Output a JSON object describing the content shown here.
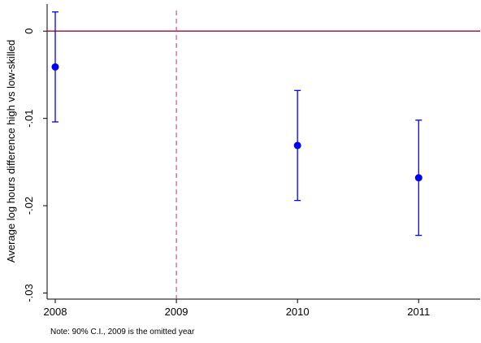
{
  "chart_data": {
    "type": "errorbar",
    "ylabel": "Average log hours difference high vs low-skilled",
    "note": "Note: 90% C.I., 2009 is the omitted year",
    "x": [
      2008,
      2010,
      2011
    ],
    "values": [
      -0.0041,
      -0.0131,
      -0.0168
    ],
    "lower": [
      -0.0104,
      -0.0194,
      -0.0234
    ],
    "upper": [
      0.0022,
      -0.0068,
      -0.0102
    ],
    "color": "#0000ff",
    "xlim": [
      2007.933,
      2011.508
    ],
    "xticks": [
      2008,
      2009,
      2010,
      2011
    ],
    "ylim": [
      -0.0307,
      0.0031
    ],
    "yticks": [
      {
        "value": 0,
        "label": "0"
      },
      {
        "value": -0.01,
        "label": "-.01"
      },
      {
        "value": -0.02,
        "label": "-.02"
      },
      {
        "value": -0.03,
        "label": "-.03"
      }
    ],
    "hline": 0,
    "hline_color": "#a3203f",
    "vline": 2009,
    "vline_color": "#c8307a"
  }
}
